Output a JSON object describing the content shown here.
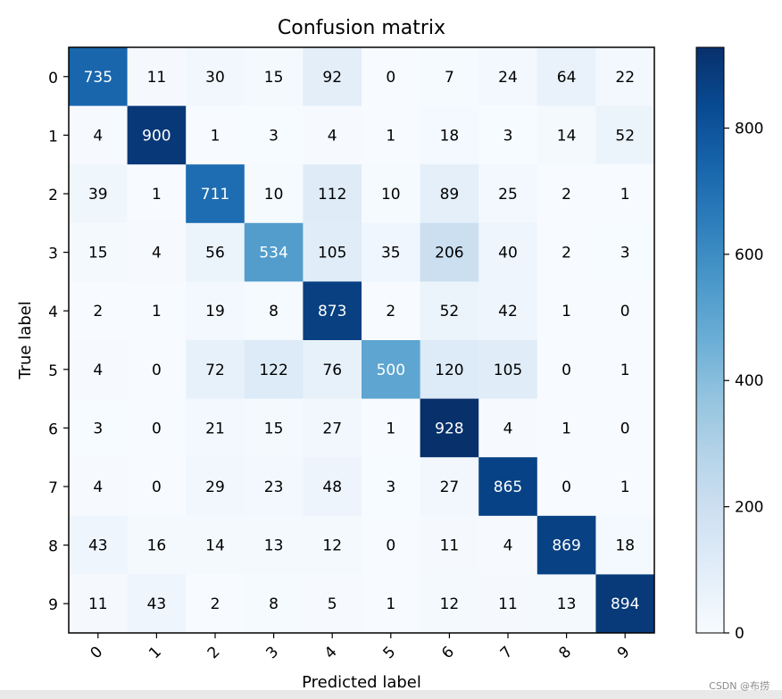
{
  "chart_data": {
    "type": "heatmap",
    "title": "Confusion matrix",
    "xlabel": "Predicted label",
    "ylabel": "True label",
    "x_categories": [
      "0",
      "1",
      "2",
      "3",
      "4",
      "5",
      "6",
      "7",
      "8",
      "9"
    ],
    "y_categories": [
      "0",
      "1",
      "2",
      "3",
      "4",
      "5",
      "6",
      "7",
      "8",
      "9"
    ],
    "values": [
      [
        735,
        11,
        30,
        15,
        92,
        0,
        7,
        24,
        64,
        22
      ],
      [
        4,
        900,
        1,
        3,
        4,
        1,
        18,
        3,
        14,
        52
      ],
      [
        39,
        1,
        711,
        10,
        112,
        10,
        89,
        25,
        2,
        1
      ],
      [
        15,
        4,
        56,
        534,
        105,
        35,
        206,
        40,
        2,
        3
      ],
      [
        2,
        1,
        19,
        8,
        873,
        2,
        52,
        42,
        1,
        0
      ],
      [
        4,
        0,
        72,
        122,
        76,
        500,
        120,
        105,
        0,
        1
      ],
      [
        3,
        0,
        21,
        15,
        27,
        1,
        928,
        4,
        1,
        0
      ],
      [
        4,
        0,
        29,
        23,
        48,
        3,
        27,
        865,
        0,
        1
      ],
      [
        43,
        16,
        14,
        13,
        12,
        0,
        11,
        4,
        869,
        18
      ],
      [
        11,
        43,
        2,
        8,
        5,
        1,
        12,
        11,
        13,
        894
      ]
    ],
    "colormap": "Blues",
    "value_range": [
      0,
      928
    ],
    "colorbar_ticks": [
      0,
      200,
      400,
      600,
      800
    ],
    "x_tick_rotation": 45
  },
  "watermark": "CSDN @布捞"
}
